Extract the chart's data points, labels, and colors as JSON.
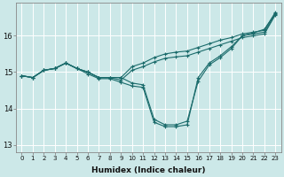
{
  "xlabel": "Humidex (Indice chaleur)",
  "bg_color": "#cce8e8",
  "grid_color": "#ffffff",
  "line_color": "#1a6b6b",
  "xlim": [
    -0.5,
    23.5
  ],
  "ylim": [
    12.8,
    16.9
  ],
  "yticks": [
    13,
    14,
    15,
    16
  ],
  "xticks": [
    0,
    1,
    2,
    3,
    4,
    5,
    6,
    7,
    8,
    9,
    10,
    11,
    12,
    13,
    14,
    15,
    16,
    17,
    18,
    19,
    20,
    21,
    22,
    23
  ],
  "series": [
    [
      14.9,
      14.85,
      15.05,
      15.1,
      15.25,
      15.1,
      15.0,
      14.85,
      14.85,
      14.85,
      14.7,
      14.65,
      13.7,
      13.55,
      13.55,
      13.65,
      14.75,
      15.2,
      15.4,
      15.65,
      16.0,
      16.05,
      16.1,
      16.6
    ],
    [
      14.9,
      14.85,
      15.05,
      15.1,
      15.25,
      15.1,
      14.95,
      14.82,
      14.82,
      14.72,
      14.62,
      14.58,
      13.62,
      13.5,
      13.5,
      13.55,
      14.85,
      15.25,
      15.45,
      15.7,
      16.0,
      16.08,
      16.18,
      16.62
    ],
    [
      14.9,
      14.85,
      15.05,
      15.1,
      15.25,
      15.1,
      15.0,
      14.85,
      14.85,
      14.85,
      15.15,
      15.25,
      15.4,
      15.5,
      15.55,
      15.58,
      15.68,
      15.78,
      15.88,
      15.95,
      16.05,
      16.1,
      16.15,
      16.65
    ],
    [
      14.9,
      14.85,
      15.05,
      15.1,
      15.25,
      15.1,
      15.0,
      14.85,
      14.85,
      14.78,
      15.05,
      15.15,
      15.28,
      15.38,
      15.42,
      15.45,
      15.55,
      15.65,
      15.75,
      15.85,
      15.95,
      16.0,
      16.05,
      16.58
    ]
  ],
  "marker": "+"
}
